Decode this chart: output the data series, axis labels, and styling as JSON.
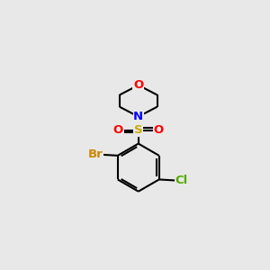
{
  "background_color": "#e8e8e8",
  "atom_colors": {
    "C": "#000000",
    "N": "#0000ff",
    "O": "#ff0000",
    "S": "#ccaa00",
    "Br": "#cc8800",
    "Cl": "#55aa00"
  },
  "bond_color": "#000000",
  "bond_lw": 1.5,
  "font_size": 9.5,
  "figsize": [
    3.0,
    3.0
  ],
  "dpi": 100
}
